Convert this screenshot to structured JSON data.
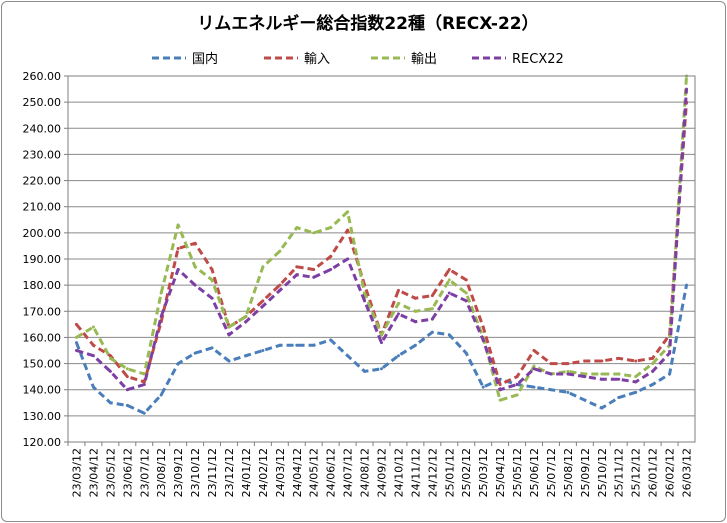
{
  "chart_data": {
    "type": "line",
    "title": "リムエネルギー総合指数22種（RECX-22）",
    "xlabel": "",
    "ylabel": "",
    "ylim": [
      120,
      260
    ],
    "y_ticks": [
      "120.00",
      "130.00",
      "140.00",
      "150.00",
      "160.00",
      "170.00",
      "180.00",
      "190.00",
      "200.00",
      "210.00",
      "220.00",
      "230.00",
      "240.00",
      "250.00",
      "260.00"
    ],
    "x_ticks": [
      "23/03/12",
      "23/04/12",
      "23/05/12",
      "23/06/12",
      "23/07/12",
      "23/08/12",
      "23/09/12",
      "23/10/12",
      "23/11/12",
      "23/12/12",
      "24/01/12",
      "24/02/12",
      "24/03/12",
      "24/04/12",
      "24/05/12",
      "24/06/12",
      "24/07/12",
      "24/08/12",
      "24/09/12",
      "24/10/12",
      "24/11/12",
      "24/12/12",
      "25/01/12",
      "25/02/12",
      "25/03/12",
      "25/04/12",
      "25/05/12",
      "25/06/12",
      "25/07/12",
      "25/08/12",
      "25/09/12",
      "25/10/12",
      "25/11/12",
      "25/12/12",
      "26/01/12",
      "26/02/12",
      "26/03/12"
    ],
    "grid": true,
    "legend_position": "top",
    "line_style": "dashed",
    "series": [
      {
        "name": "国内",
        "color": "#4a7ebb",
        "values": [
          158,
          141,
          135,
          134,
          131,
          138,
          150,
          154,
          156,
          151,
          153,
          155,
          157,
          157,
          157,
          159,
          153,
          147,
          148,
          153,
          157,
          162,
          161,
          154,
          141,
          144,
          142,
          141,
          140,
          139,
          136,
          133,
          137,
          139,
          142,
          146,
          180
        ]
      },
      {
        "name": "輸入",
        "color": "#be4b48",
        "values": [
          165,
          157,
          153,
          145,
          143,
          166,
          194,
          196,
          186,
          164,
          168,
          174,
          180,
          187,
          186,
          191,
          201,
          180,
          161,
          178,
          175,
          176,
          186,
          182,
          164,
          142,
          145,
          155,
          150,
          150,
          151,
          151,
          152,
          151,
          152,
          161,
          250
        ]
      },
      {
        "name": "輸出",
        "color": "#98b954",
        "values": [
          160,
          164,
          152,
          148,
          146,
          177,
          203,
          187,
          182,
          164,
          168,
          187,
          193,
          202,
          200,
          202,
          208,
          177,
          161,
          173,
          170,
          171,
          182,
          177,
          160,
          136,
          138,
          149,
          146,
          147,
          146,
          146,
          146,
          145,
          150,
          157,
          260
        ]
      },
      {
        "name": "RECX22",
        "color": "#7d3fa3",
        "values": [
          155,
          153,
          147,
          140,
          142,
          168,
          186,
          180,
          175,
          161,
          166,
          172,
          178,
          184,
          183,
          186,
          190,
          174,
          158,
          169,
          166,
          167,
          177,
          174,
          159,
          140,
          142,
          148,
          146,
          146,
          145,
          144,
          144,
          143,
          147,
          154,
          255
        ]
      }
    ]
  }
}
